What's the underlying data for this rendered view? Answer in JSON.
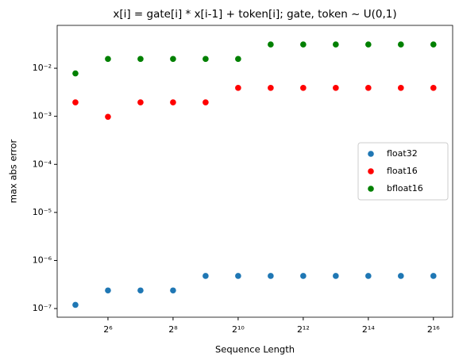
{
  "chart_data": {
    "type": "scatter",
    "title": "x[i] = gate[i] * x[i-1] + token[i]; gate, token ~ U(0,1)",
    "x_label": "Sequence Length",
    "y_label": "max abs error",
    "x": [
      32,
      64,
      128,
      256,
      512,
      1024,
      2048,
      4096,
      8192,
      16384,
      32768,
      65536
    ],
    "series": [
      {
        "name": "float32",
        "color": "#1f77b4",
        "values": [
          1.19e-07,
          2.38e-07,
          2.38e-07,
          2.38e-07,
          4.77e-07,
          4.77e-07,
          4.77e-07,
          4.77e-07,
          4.77e-07,
          4.77e-07,
          4.77e-07,
          4.77e-07
        ]
      },
      {
        "name": "float16",
        "color": "#ff0000",
        "values": [
          0.00195,
          0.000977,
          0.00195,
          0.00195,
          0.00195,
          0.0039,
          0.0039,
          0.0039,
          0.0039,
          0.0039,
          0.0039,
          0.0039
        ]
      },
      {
        "name": "bfloat16",
        "color": "#008000",
        "values": [
          0.0078,
          0.0156,
          0.0156,
          0.0156,
          0.0156,
          0.0156,
          0.03125,
          0.03125,
          0.03125,
          0.03125,
          0.03125,
          0.03125
        ]
      }
    ],
    "xscale": "log",
    "yscale": "log",
    "xlim": [
      21.7,
      98700
    ],
    "ylim": [
      6.6e-08,
      0.078
    ],
    "xticks": [
      {
        "value": 64,
        "label": "2⁶"
      },
      {
        "value": 256,
        "label": "2⁸"
      },
      {
        "value": 1024,
        "label": "2¹⁰"
      },
      {
        "value": 4096,
        "label": "2¹²"
      },
      {
        "value": 16384,
        "label": "2¹⁴"
      },
      {
        "value": 65536,
        "label": "2¹⁶"
      }
    ],
    "yticks": [
      {
        "value": 1e-07,
        "label": "10⁻⁷"
      },
      {
        "value": 1e-06,
        "label": "10⁻⁶"
      },
      {
        "value": 1e-05,
        "label": "10⁻⁵"
      },
      {
        "value": 0.0001,
        "label": "10⁻⁴"
      },
      {
        "value": 0.001,
        "label": "10⁻³"
      },
      {
        "value": 0.01,
        "label": "10⁻²"
      }
    ],
    "legend": "center right"
  }
}
